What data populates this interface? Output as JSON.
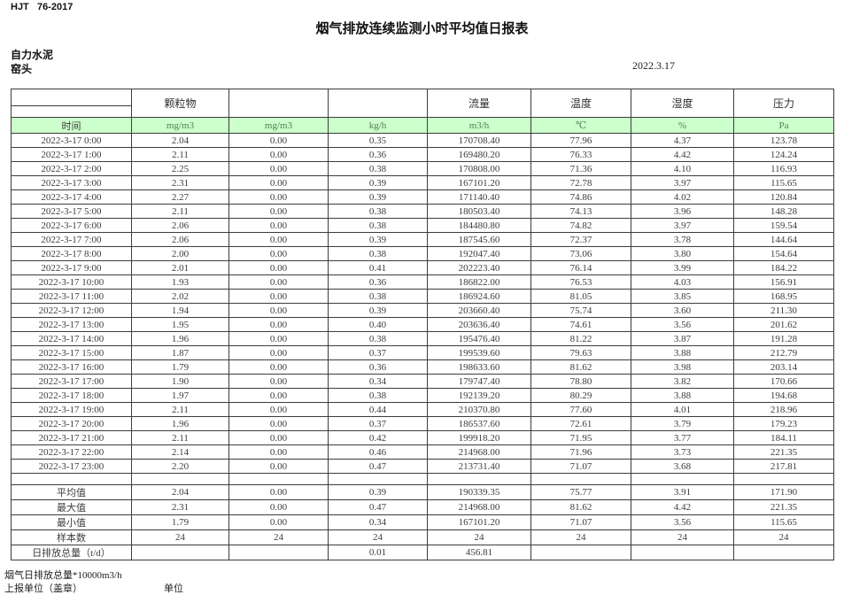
{
  "header": {
    "doc_code": "HJT   76-2017",
    "title": "烟气排放连续监测小时平均值日报表",
    "company": "自力水泥",
    "station": "窑头",
    "date": "2022.3.17"
  },
  "table": {
    "group_headers": [
      "",
      "颗粒物",
      "",
      "",
      "流量",
      "温度",
      "湿度",
      "压力"
    ],
    "units": [
      "时间",
      "mg/m3",
      "mg/m3",
      "kg/h",
      "m3/h",
      "℃",
      "%",
      "Pa"
    ],
    "rows": [
      [
        "2022-3-17 0:00",
        "2.04",
        "0.00",
        "0.35",
        "170708.40",
        "77.96",
        "4.37",
        "123.78"
      ],
      [
        "2022-3-17 1:00",
        "2.11",
        "0.00",
        "0.36",
        "169480.20",
        "76.33",
        "4.42",
        "124.24"
      ],
      [
        "2022-3-17 2:00",
        "2.25",
        "0.00",
        "0.38",
        "170808.00",
        "71.36",
        "4.10",
        "116.93"
      ],
      [
        "2022-3-17 3:00",
        "2.31",
        "0.00",
        "0.39",
        "167101.20",
        "72.78",
        "3.97",
        "115.65"
      ],
      [
        "2022-3-17 4:00",
        "2.27",
        "0.00",
        "0.39",
        "171140.40",
        "74.86",
        "4.02",
        "120.84"
      ],
      [
        "2022-3-17 5:00",
        "2.11",
        "0.00",
        "0.38",
        "180503.40",
        "74.13",
        "3.96",
        "148.28"
      ],
      [
        "2022-3-17 6:00",
        "2.06",
        "0.00",
        "0.38",
        "184480.80",
        "74.82",
        "3.97",
        "159.54"
      ],
      [
        "2022-3-17 7:00",
        "2.06",
        "0.00",
        "0.39",
        "187545.60",
        "72.37",
        "3.78",
        "144.64"
      ],
      [
        "2022-3-17 8:00",
        "2.00",
        "0.00",
        "0.38",
        "192047.40",
        "73.06",
        "3.80",
        "154.64"
      ],
      [
        "2022-3-17 9:00",
        "2.01",
        "0.00",
        "0.41",
        "202223.40",
        "76.14",
        "3.99",
        "184.22"
      ],
      [
        "2022-3-17 10:00",
        "1.93",
        "0.00",
        "0.36",
        "186822.00",
        "76.53",
        "4.03",
        "156.91"
      ],
      [
        "2022-3-17 11:00",
        "2.02",
        "0.00",
        "0.38",
        "186924.60",
        "81.05",
        "3.85",
        "168.95"
      ],
      [
        "2022-3-17 12:00",
        "1.94",
        "0.00",
        "0.39",
        "203660.40",
        "75.74",
        "3.60",
        "211.30"
      ],
      [
        "2022-3-17 13:00",
        "1.95",
        "0.00",
        "0.40",
        "203636.40",
        "74.61",
        "3.56",
        "201.62"
      ],
      [
        "2022-3-17 14:00",
        "1.96",
        "0.00",
        "0.38",
        "195476.40",
        "81.22",
        "3.87",
        "191.28"
      ],
      [
        "2022-3-17 15:00",
        "1.87",
        "0.00",
        "0.37",
        "199539.60",
        "79.63",
        "3.88",
        "212.79"
      ],
      [
        "2022-3-17 16:00",
        "1.79",
        "0.00",
        "0.36",
        "198633.60",
        "81.62",
        "3.98",
        "203.14"
      ],
      [
        "2022-3-17 17:00",
        "1.90",
        "0.00",
        "0.34",
        "179747.40",
        "78.80",
        "3.82",
        "170.66"
      ],
      [
        "2022-3-17 18:00",
        "1.97",
        "0.00",
        "0.38",
        "192139.20",
        "80.29",
        "3.88",
        "194.68"
      ],
      [
        "2022-3-17 19:00",
        "2.11",
        "0.00",
        "0.44",
        "210370.80",
        "77.60",
        "4.01",
        "218.96"
      ],
      [
        "2022-3-17 20:00",
        "1.96",
        "0.00",
        "0.37",
        "186537.60",
        "72.61",
        "3.79",
        "179.23"
      ],
      [
        "2022-3-17 21:00",
        "2.11",
        "0.00",
        "0.42",
        "199918.20",
        "71.95",
        "3.77",
        "184.11"
      ],
      [
        "2022-3-17 22:00",
        "2.14",
        "0.00",
        "0.46",
        "214968.00",
        "71.96",
        "3.73",
        "221.35"
      ],
      [
        "2022-3-17 23:00",
        "2.20",
        "0.00",
        "0.47",
        "213731.40",
        "71.07",
        "3.68",
        "217.81"
      ]
    ],
    "summary": [
      [
        "平均值",
        "2.04",
        "0.00",
        "0.39",
        "190339.35",
        "75.77",
        "3.91",
        "171.90"
      ],
      [
        "最大值",
        "2.31",
        "0.00",
        "0.47",
        "214968.00",
        "81.62",
        "4.42",
        "221.35"
      ],
      [
        "最小值",
        "1.79",
        "0.00",
        "0.34",
        "167101.20",
        "71.07",
        "3.56",
        "115.65"
      ],
      [
        "样本数",
        "24",
        "24",
        "24",
        "24",
        "24",
        "24",
        "24"
      ],
      [
        "日排放总量（t/d）",
        "",
        "",
        "0.01",
        "456.81",
        "",
        "",
        ""
      ]
    ]
  },
  "footer": {
    "note": "烟气日排放总量*10000m3/h",
    "report_unit": "上报单位（盖章）",
    "unit_label": "单位"
  },
  "colors": {
    "header_green": "#ccffcc"
  }
}
